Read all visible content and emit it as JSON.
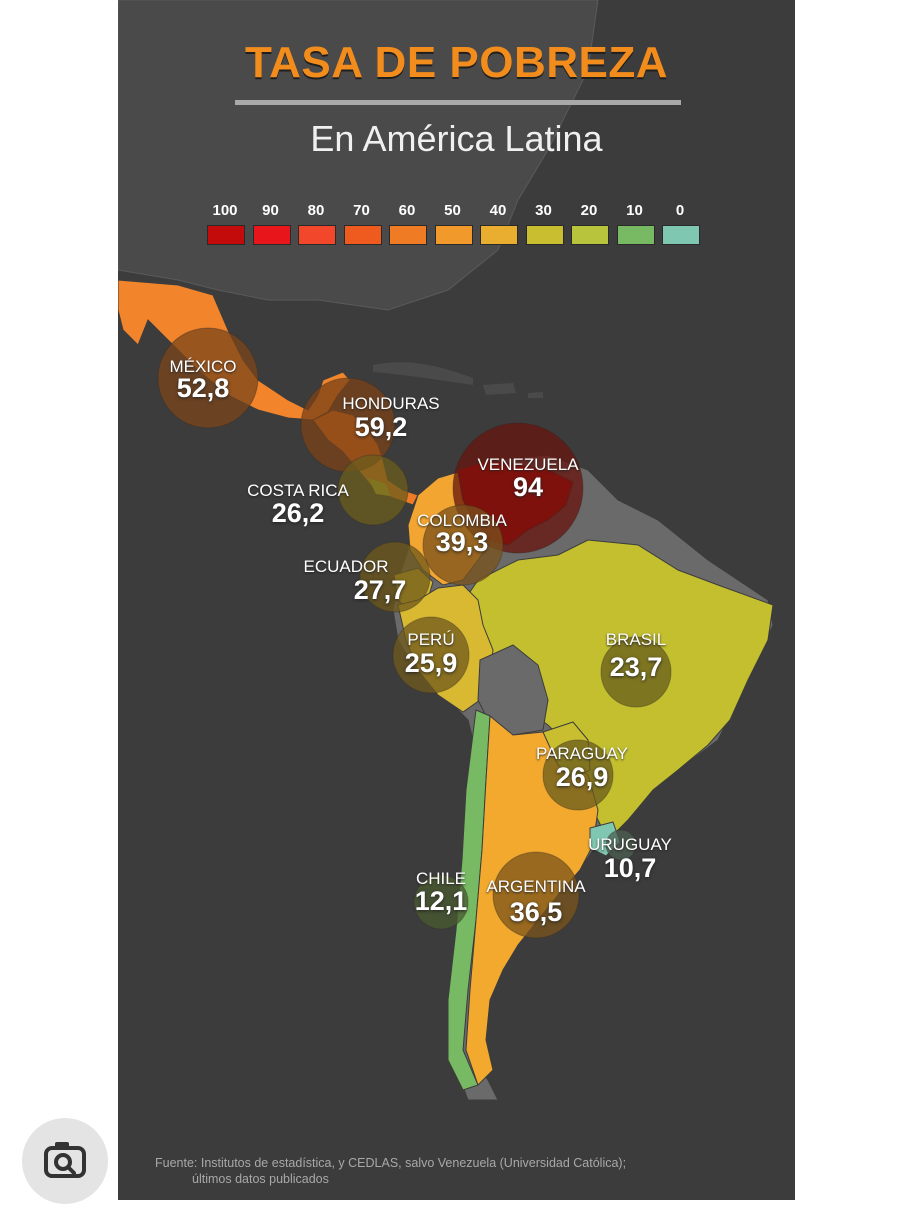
{
  "title": "TASA DE POBREZA",
  "subtitle": "En América Latina",
  "legend": [
    {
      "label": "100",
      "color": "#c30b0b"
    },
    {
      "label": "90",
      "color": "#e8161b"
    },
    {
      "label": "80",
      "color": "#f2472a"
    },
    {
      "label": "70",
      "color": "#ef5a1e"
    },
    {
      "label": "60",
      "color": "#f07b25"
    },
    {
      "label": "50",
      "color": "#f2992b"
    },
    {
      "label": "40",
      "color": "#e9ae2f"
    },
    {
      "label": "30",
      "color": "#c9be2f"
    },
    {
      "label": "20",
      "color": "#b8c43c"
    },
    {
      "label": "10",
      "color": "#78ba63"
    },
    {
      "label": "0",
      "color": "#7fc7b0"
    }
  ],
  "countries": [
    {
      "name": "MÉXICO",
      "value": "52,8",
      "color": "#f2852b"
    },
    {
      "name": "HONDURAS",
      "value": "59,2",
      "color": "#f07b25"
    },
    {
      "name": "COSTA RICA",
      "value": "26,2",
      "color": "#c9be2f"
    },
    {
      "name": "VENEZUELA",
      "value": "94",
      "color": "#c30b0b"
    },
    {
      "name": "COLOMBIA",
      "value": "39,3",
      "color": "#f2a530"
    },
    {
      "name": "ECUADOR",
      "value": "27,7",
      "color": "#d4b72e"
    },
    {
      "name": "PERÚ",
      "value": "25,9",
      "color": "#d9b832"
    },
    {
      "name": "BRASIL",
      "value": "23,7",
      "color": "#c3bf2f"
    },
    {
      "name": "PARAGUAY",
      "value": "26,9",
      "color": "#c9be2f"
    },
    {
      "name": "URUGUAY",
      "value": "10,7",
      "color": "#7fc7b0"
    },
    {
      "name": "CHILE",
      "value": "12,1",
      "color": "#78ba63"
    },
    {
      "name": "ARGENTINA",
      "value": "36,5",
      "color": "#f2a92e"
    }
  ],
  "footer": {
    "line1": "Fuente: Institutos de estadística, y CEDLAS, salvo Venezuela (Universidad Católica);",
    "line2": "últimos datos publicados"
  },
  "icons": {
    "lens": "camera-search-icon"
  }
}
